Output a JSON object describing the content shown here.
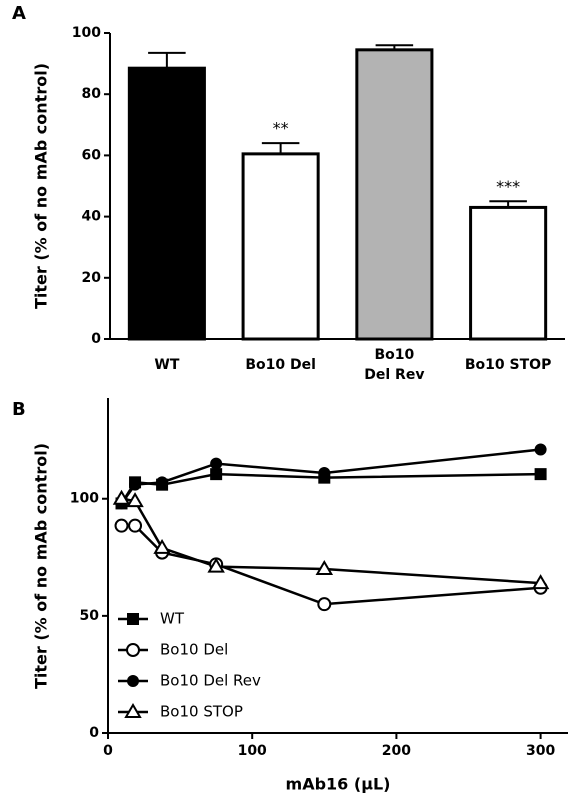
{
  "panel_labels": [
    "A",
    "B"
  ],
  "chart_data": [
    {
      "type": "bar",
      "ylabel": "Titer (% of no mAb control)",
      "categories": [
        "WT",
        "Bo10 Del",
        [
          "Bo10",
          "Del Rev"
        ],
        "Bo10 STOP"
      ],
      "values": [
        88.5,
        60.5,
        94.5,
        43
      ],
      "errors": [
        5,
        3.5,
        1.5,
        2
      ],
      "colors": [
        "#000000",
        "#ffffff",
        "#b3b3b3",
        "#ffffff"
      ],
      "significance": [
        null,
        "**",
        null,
        "***"
      ],
      "ylim": [
        0,
        100
      ],
      "yticks": [
        0,
        20,
        40,
        60,
        80,
        100
      ]
    },
    {
      "type": "line",
      "xlabel": "mAb16 (µL)",
      "ylabel": "Titer (% of no mAb control)",
      "x": [
        9.375,
        18.75,
        37.5,
        75,
        150,
        300
      ],
      "series": [
        {
          "name": "WT",
          "marker": "square",
          "values": [
            98,
            107,
            106,
            110.5,
            109,
            110.5
          ]
        },
        {
          "name": "Bo10 Del",
          "marker": "open-circle",
          "values": [
            88.5,
            88.5,
            77,
            72,
            55,
            62
          ]
        },
        {
          "name": "Bo10 Del Rev",
          "marker": "circle",
          "values": [
            98,
            106,
            107,
            115,
            111,
            121
          ]
        },
        {
          "name": "Bo10 STOP",
          "marker": "open-triangle",
          "values": [
            100,
            99,
            79,
            71,
            70,
            64
          ]
        }
      ],
      "xlim": [
        0,
        319
      ],
      "ylim": [
        0,
        143
      ],
      "xticks": [
        0,
        100,
        200,
        300
      ],
      "yticks": [
        0,
        50,
        100
      ]
    }
  ]
}
